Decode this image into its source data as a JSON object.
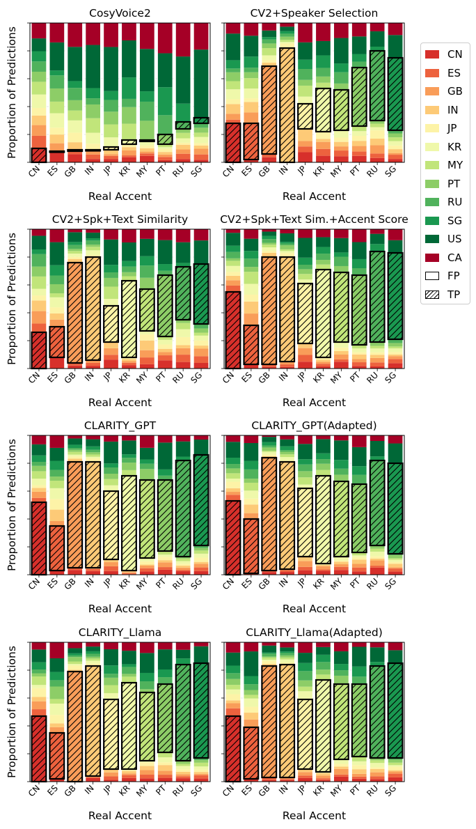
{
  "figure": {
    "colors": {
      "CN": "#d7302b",
      "ES": "#ed623e",
      "GB": "#f99d59",
      "IN": "#fdca77",
      "JP": "#fdf3a7",
      "KR": "#eff8aa",
      "MY": "#c1e57a",
      "PT": "#8dcd67",
      "RU": "#50b25c",
      "SG": "#1a9850",
      "US": "#006837",
      "CA": "#a50026"
    },
    "legend": {
      "entries": [
        "CN",
        "ES",
        "GB",
        "IN",
        "JP",
        "KR",
        "MY",
        "PT",
        "RU",
        "SG",
        "US",
        "CA"
      ],
      "fp_label": "FP",
      "tp_label": "TP"
    }
  },
  "chart_data": [
    {
      "type": "stacked-bar",
      "title": "CosyVoice2",
      "xlabel": "Real Accent",
      "ylabel": "Proportion of Predictions",
      "ylim": [
        0,
        1
      ],
      "categories": [
        "CN",
        "ES",
        "GB",
        "IN",
        "JP",
        "KR",
        "MY",
        "PT",
        "RU",
        "SG"
      ],
      "tp": [
        0.1,
        0.08,
        0.08,
        0.09,
        0.09,
        0.13,
        0.15,
        0.13,
        0.24,
        0.28
      ],
      "fp_span": [
        [
          0.0,
          0.1
        ],
        [
          0.08,
          0.08
        ],
        [
          0.08,
          0.09
        ],
        [
          0.09,
          0.09
        ],
        [
          0.09,
          0.11
        ],
        [
          0.13,
          0.16
        ],
        [
          0.15,
          0.16
        ],
        [
          0.13,
          0.2
        ],
        [
          0.24,
          0.29
        ],
        [
          0.28,
          0.32
        ]
      ]
    },
    {
      "type": "stacked-bar",
      "title": "CV2+Speaker Selection",
      "xlabel": "Real Accent",
      "ylabel": "",
      "ylim": [
        0,
        1
      ],
      "categories": [
        "CN",
        "ES",
        "GB",
        "IN",
        "JP",
        "KR",
        "MY",
        "PT",
        "RU",
        "SG"
      ],
      "tp": [
        0.28,
        0.28,
        0.69,
        0.82,
        0.42,
        0.53,
        0.52,
        0.68,
        0.8,
        0.75
      ],
      "fp_span": [
        [
          0.0,
          0.28
        ],
        [
          0.02,
          0.28
        ],
        [
          0.06,
          0.69
        ],
        [
          0.0,
          0.82
        ],
        [
          0.24,
          0.42
        ],
        [
          0.22,
          0.53
        ],
        [
          0.23,
          0.52
        ],
        [
          0.26,
          0.68
        ],
        [
          0.3,
          0.8
        ],
        [
          0.23,
          0.75
        ]
      ]
    },
    {
      "type": "stacked-bar",
      "title": "CV2+Spk+Text Similarity",
      "xlabel": "Real Accent",
      "ylabel": "Proportion of Predictions",
      "ylim": [
        0,
        1
      ],
      "categories": [
        "CN",
        "ES",
        "GB",
        "IN",
        "JP",
        "KR",
        "MY",
        "PT",
        "RU",
        "SG"
      ],
      "tp": [
        0.26,
        0.3,
        0.76,
        0.8,
        0.45,
        0.63,
        0.57,
        0.67,
        0.73,
        0.75
      ],
      "fp_span": [
        [
          0.0,
          0.26
        ],
        [
          0.08,
          0.3
        ],
        [
          0.04,
          0.76
        ],
        [
          0.06,
          0.8
        ],
        [
          0.19,
          0.45
        ],
        [
          0.08,
          0.63
        ],
        [
          0.27,
          0.57
        ],
        [
          0.23,
          0.67
        ],
        [
          0.35,
          0.73
        ],
        [
          0.32,
          0.75
        ]
      ]
    },
    {
      "type": "stacked-bar",
      "title": "CV2+Spk+Text Sim.+Accent Score",
      "xlabel": "Real Accent",
      "ylabel": "",
      "ylim": [
        0,
        1
      ],
      "categories": [
        "CN",
        "ES",
        "GB",
        "IN",
        "JP",
        "KR",
        "MY",
        "PT",
        "RU",
        "SG"
      ],
      "tp": [
        0.55,
        0.31,
        0.8,
        0.8,
        0.61,
        0.71,
        0.69,
        0.67,
        0.84,
        0.83
      ],
      "fp_span": [
        [
          0.0,
          0.55
        ],
        [
          0.03,
          0.31
        ],
        [
          0.03,
          0.8
        ],
        [
          0.05,
          0.8
        ],
        [
          0.18,
          0.61
        ],
        [
          0.08,
          0.71
        ],
        [
          0.19,
          0.69
        ],
        [
          0.17,
          0.67
        ],
        [
          0.19,
          0.84
        ],
        [
          0.21,
          0.83
        ]
      ]
    },
    {
      "type": "stacked-bar",
      "title": "CLARITY_GPT",
      "xlabel": "Real Accent",
      "ylabel": "Proportion of Predictions",
      "ylim": [
        0,
        1
      ],
      "categories": [
        "CN",
        "ES",
        "GB",
        "IN",
        "JP",
        "KR",
        "MY",
        "PT",
        "RU",
        "SG"
      ],
      "tp": [
        0.52,
        0.35,
        0.81,
        0.81,
        0.6,
        0.71,
        0.68,
        0.68,
        0.82,
        0.86
      ],
      "fp_span": [
        [
          0.0,
          0.52
        ],
        [
          0.03,
          0.35
        ],
        [
          0.05,
          0.81
        ],
        [
          0.05,
          0.81
        ],
        [
          0.11,
          0.6
        ],
        [
          0.03,
          0.71
        ],
        [
          0.12,
          0.68
        ],
        [
          0.17,
          0.68
        ],
        [
          0.13,
          0.82
        ],
        [
          0.21,
          0.86
        ]
      ]
    },
    {
      "type": "stacked-bar",
      "title": "CLARITY_GPT(Adapted)",
      "xlabel": "Real Accent",
      "ylabel": "",
      "ylim": [
        0,
        1
      ],
      "categories": [
        "CN",
        "ES",
        "GB",
        "IN",
        "JP",
        "KR",
        "MY",
        "PT",
        "RU",
        "SG"
      ],
      "tp": [
        0.53,
        0.4,
        0.84,
        0.81,
        0.62,
        0.71,
        0.67,
        0.65,
        0.82,
        0.8
      ],
      "fp_span": [
        [
          0.0,
          0.53
        ],
        [
          0.01,
          0.4
        ],
        [
          0.03,
          0.84
        ],
        [
          0.04,
          0.81
        ],
        [
          0.13,
          0.62
        ],
        [
          0.08,
          0.71
        ],
        [
          0.13,
          0.67
        ],
        [
          0.16,
          0.65
        ],
        [
          0.21,
          0.82
        ],
        [
          0.15,
          0.8
        ]
      ]
    },
    {
      "type": "stacked-bar",
      "title": "CLARITY_Llama",
      "xlabel": "Real Accent",
      "ylabel": "Proportion of Predictions",
      "ylim": [
        0,
        1
      ],
      "categories": [
        "CN",
        "ES",
        "GB",
        "IN",
        "JP",
        "KR",
        "MY",
        "PT",
        "RU",
        "SG"
      ],
      "tp": [
        0.47,
        0.35,
        0.79,
        0.83,
        0.59,
        0.71,
        0.64,
        0.7,
        0.84,
        0.85
      ],
      "fp_span": [
        [
          0.0,
          0.47
        ],
        [
          0.02,
          0.35
        ],
        [
          0.0,
          0.79
        ],
        [
          0.04,
          0.83
        ],
        [
          0.09,
          0.59
        ],
        [
          0.09,
          0.71
        ],
        [
          0.15,
          0.64
        ],
        [
          0.21,
          0.7
        ],
        [
          0.15,
          0.84
        ],
        [
          0.17,
          0.85
        ]
      ]
    },
    {
      "type": "stacked-bar",
      "title": "CLARITY_Llama(Adapted)",
      "xlabel": "Real Accent",
      "ylabel": "",
      "ylim": [
        0,
        1
      ],
      "categories": [
        "CN",
        "ES",
        "GB",
        "IN",
        "JP",
        "KR",
        "MY",
        "PT",
        "RU",
        "SG"
      ],
      "tp": [
        0.47,
        0.39,
        0.83,
        0.84,
        0.59,
        0.73,
        0.7,
        0.7,
        0.83,
        0.85
      ],
      "fp_span": [
        [
          0.0,
          0.47
        ],
        [
          0.02,
          0.39
        ],
        [
          0.03,
          0.83
        ],
        [
          0.03,
          0.84
        ],
        [
          0.09,
          0.59
        ],
        [
          0.07,
          0.73
        ],
        [
          0.16,
          0.7
        ],
        [
          0.18,
          0.7
        ],
        [
          0.17,
          0.83
        ],
        [
          0.17,
          0.85
        ]
      ]
    }
  ]
}
